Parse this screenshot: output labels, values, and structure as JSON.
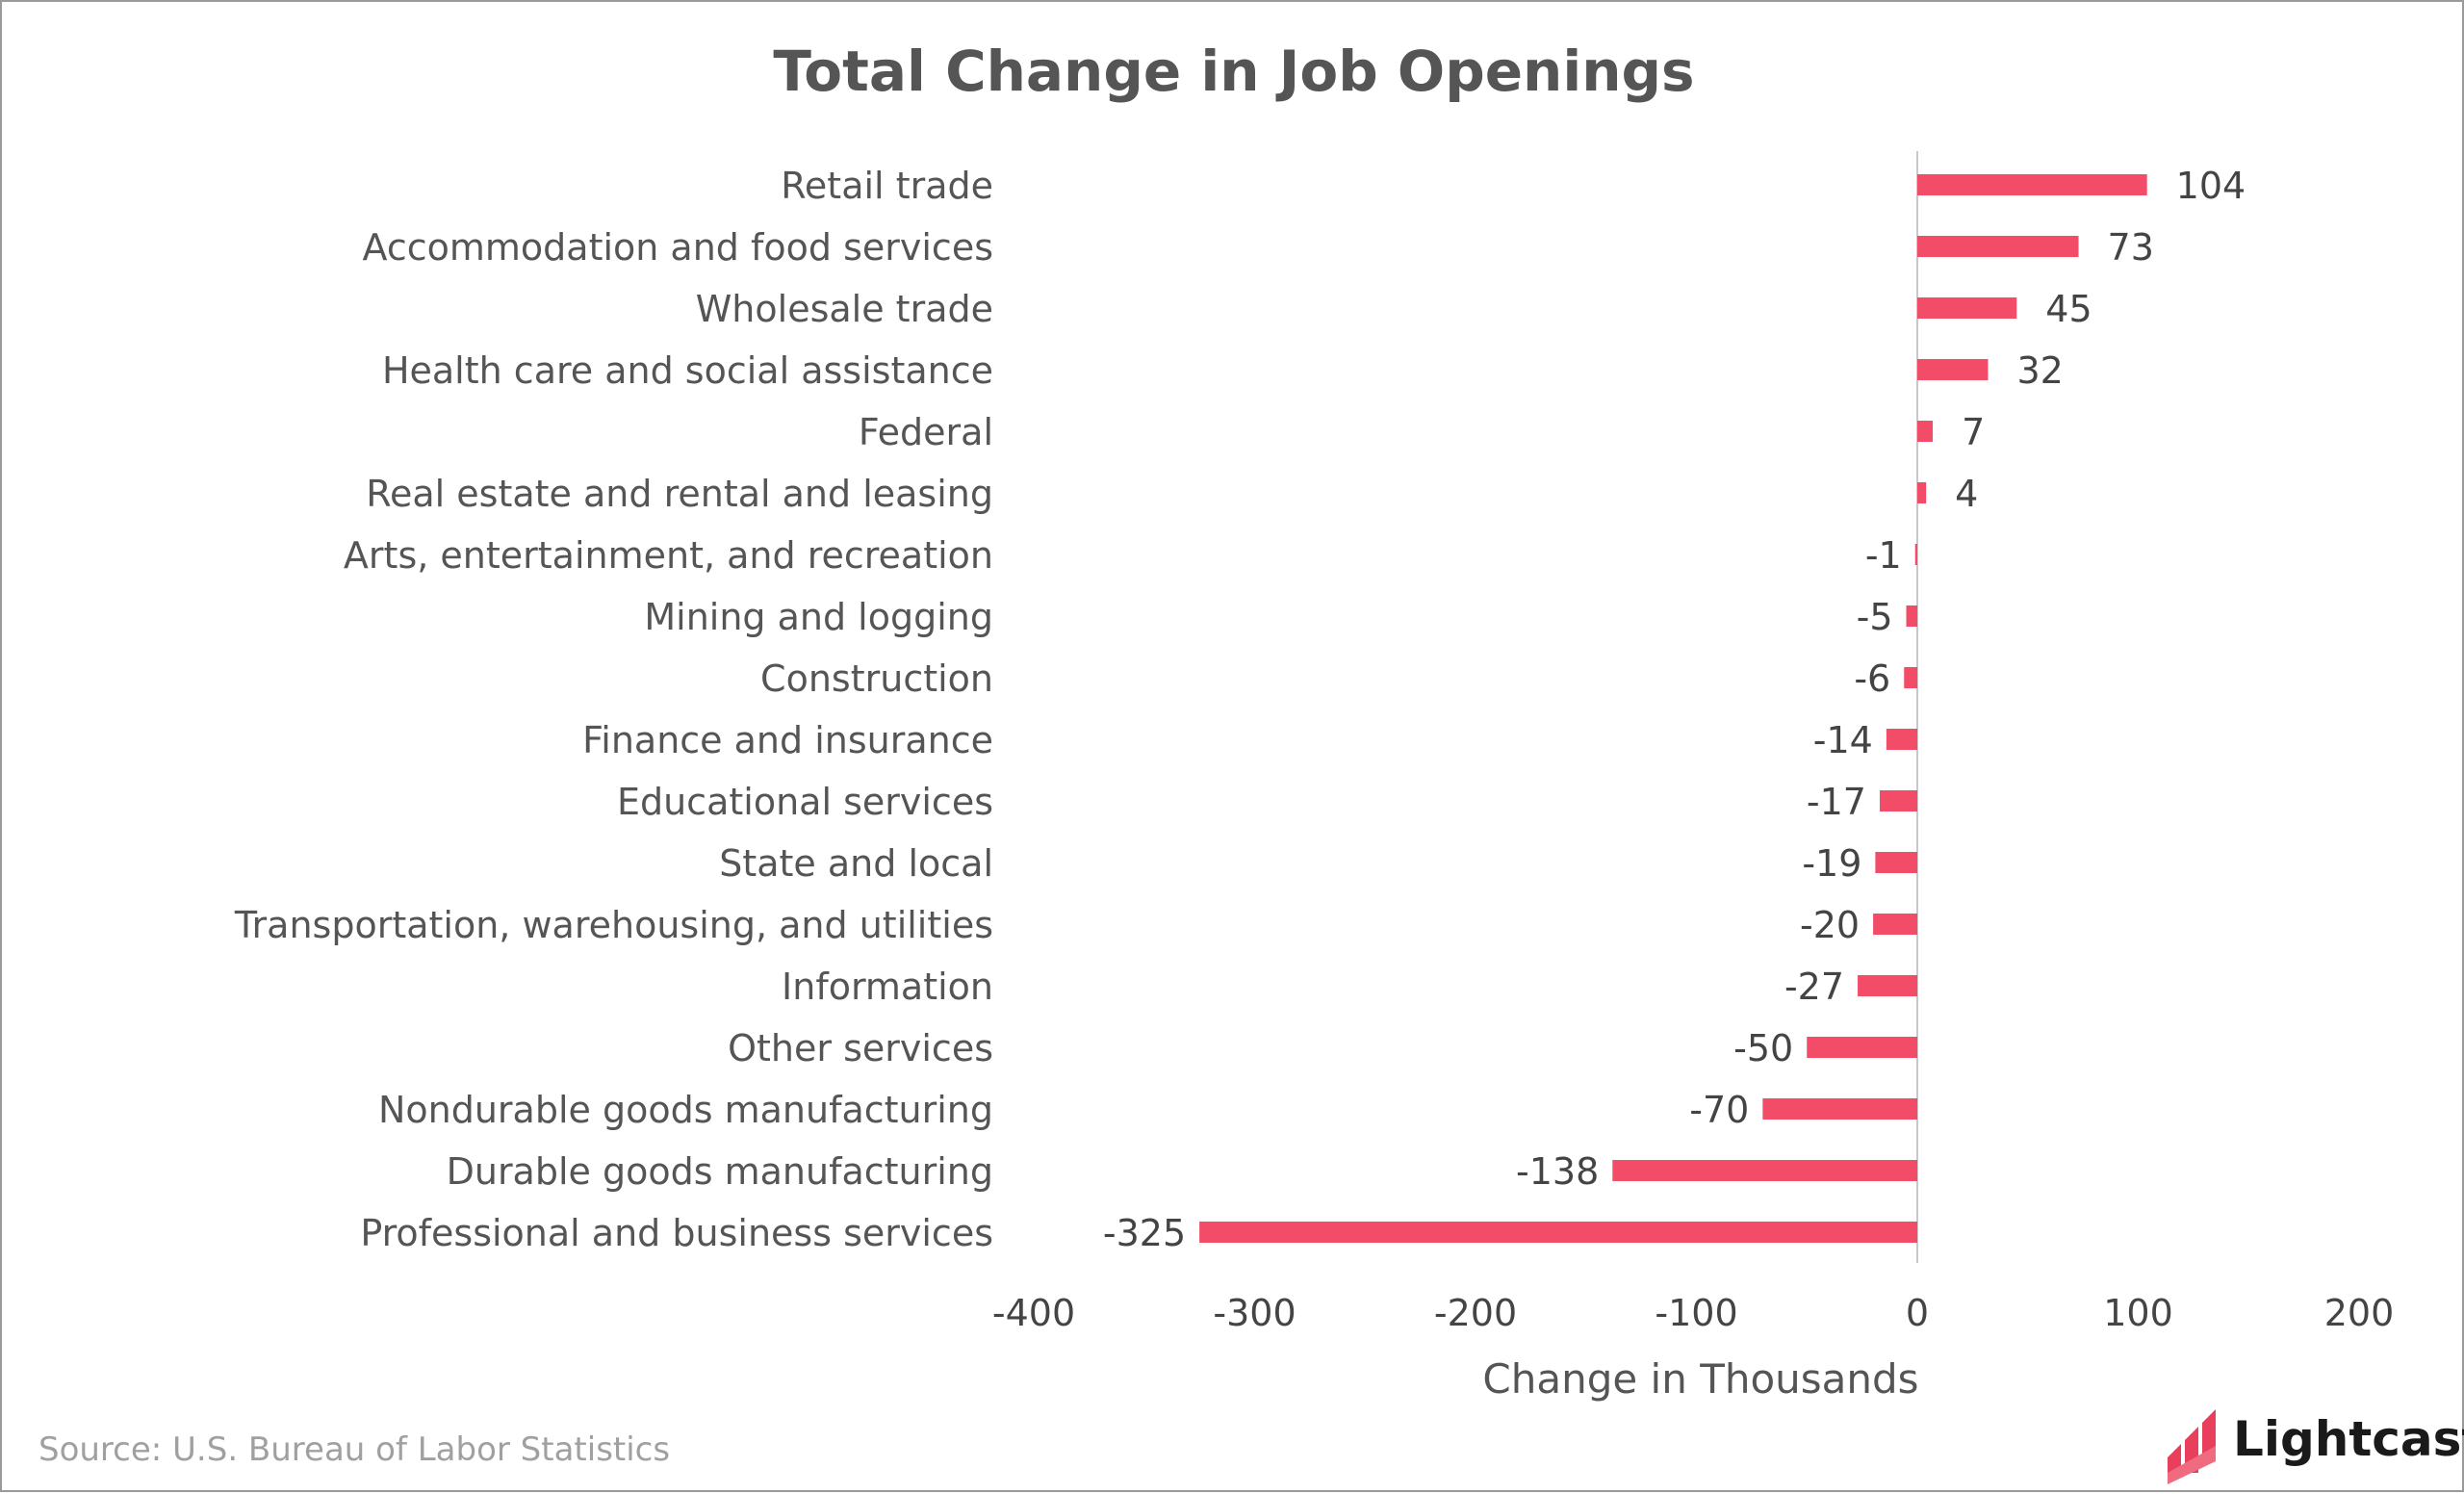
{
  "chart_data": {
    "type": "bar",
    "orientation": "horizontal",
    "title": "Total Change in Job Openings",
    "xlabel": "Change in Thousands",
    "ylabel": "",
    "xlim": [
      -400,
      200
    ],
    "xticks": [
      "-400",
      "-300",
      "-200",
      "-100",
      "0",
      "100",
      "200"
    ],
    "grid": false,
    "legend": "none",
    "categories": [
      "Retail trade",
      "Accommodation and food services",
      "Wholesale trade",
      "Health care and social assistance",
      "Federal",
      "Real estate and rental and leasing",
      "Arts, entertainment, and recreation",
      "Mining and logging",
      "Construction",
      "Finance and insurance",
      "Educational services",
      "State and local",
      "Transportation, warehousing, and utilities",
      "Information",
      "Other services",
      "Nondurable goods manufacturing",
      "Durable goods manufacturing",
      "Professional and business services"
    ],
    "values": [
      104,
      73,
      45,
      32,
      7,
      4,
      -1,
      -5,
      -6,
      -14,
      -17,
      -19,
      -20,
      -27,
      -50,
      -70,
      -138,
      -325
    ],
    "bar_color": "#f24c68"
  },
  "source": "Source:  U.S. Bureau of Labor Statistics",
  "brand": {
    "name": "Lightcast",
    "icon": "lightcast-logo-icon",
    "color": "#e8405c"
  },
  "colors": {
    "text": "#555555",
    "axis": "#c8c8c8",
    "border": "#9a9a9a"
  }
}
